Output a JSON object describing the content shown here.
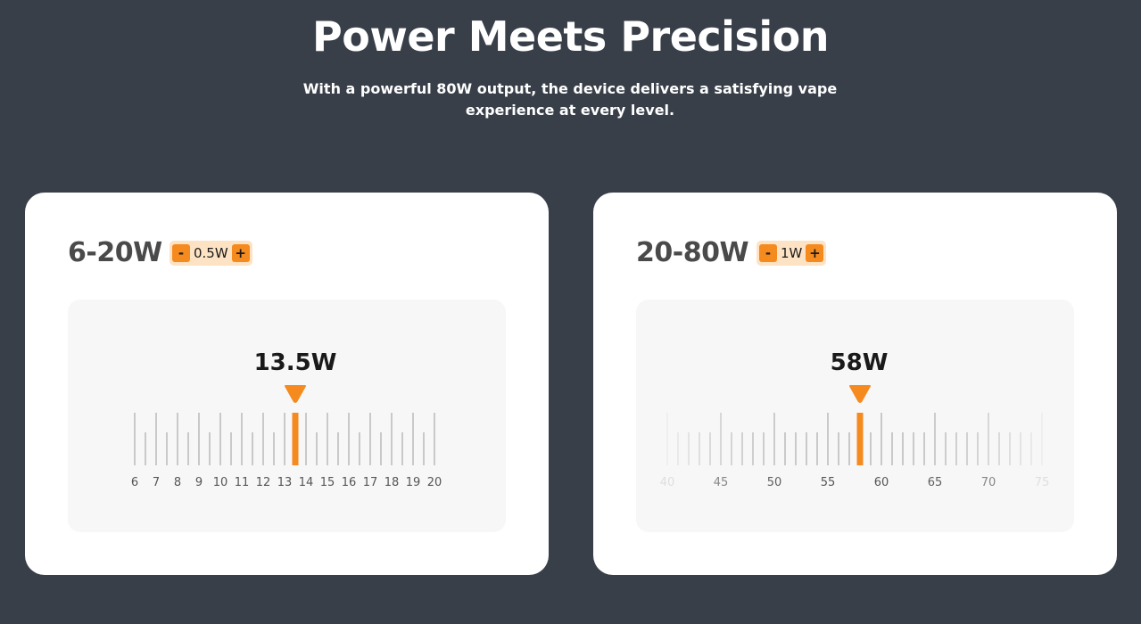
{
  "header": {
    "title": "Power Meets Precision",
    "subtitle": "With a powerful 80W output, the device delivers a satisfying vape experience at every level."
  },
  "colors": {
    "background": "#383f49",
    "accent": "#f58a1f",
    "badge": "#fde3c4"
  },
  "cards": [
    {
      "range_label": "6-20W",
      "step_label": "0.5W",
      "minus_label": "-",
      "plus_label": "+",
      "current_label": "13.5W",
      "current_value": 13.5,
      "scale": {
        "min": 6,
        "max": 20,
        "minor_step": 0.5,
        "major_step": 1,
        "fade_edges": false
      },
      "tick_labels": [
        "6",
        "7",
        "8",
        "9",
        "10",
        "11",
        "12",
        "13",
        "14",
        "15",
        "16",
        "17",
        "18",
        "19",
        "20"
      ]
    },
    {
      "range_label": "20-80W",
      "step_label": "1W",
      "minus_label": "-",
      "plus_label": "+",
      "current_label": "58W",
      "current_value": 58,
      "scale": {
        "min": 40,
        "max": 75,
        "minor_step": 1,
        "major_step": 5,
        "fade_edges": true
      },
      "tick_labels": [
        "40",
        "45",
        "50",
        "55",
        "60",
        "65",
        "70",
        "75"
      ]
    }
  ]
}
